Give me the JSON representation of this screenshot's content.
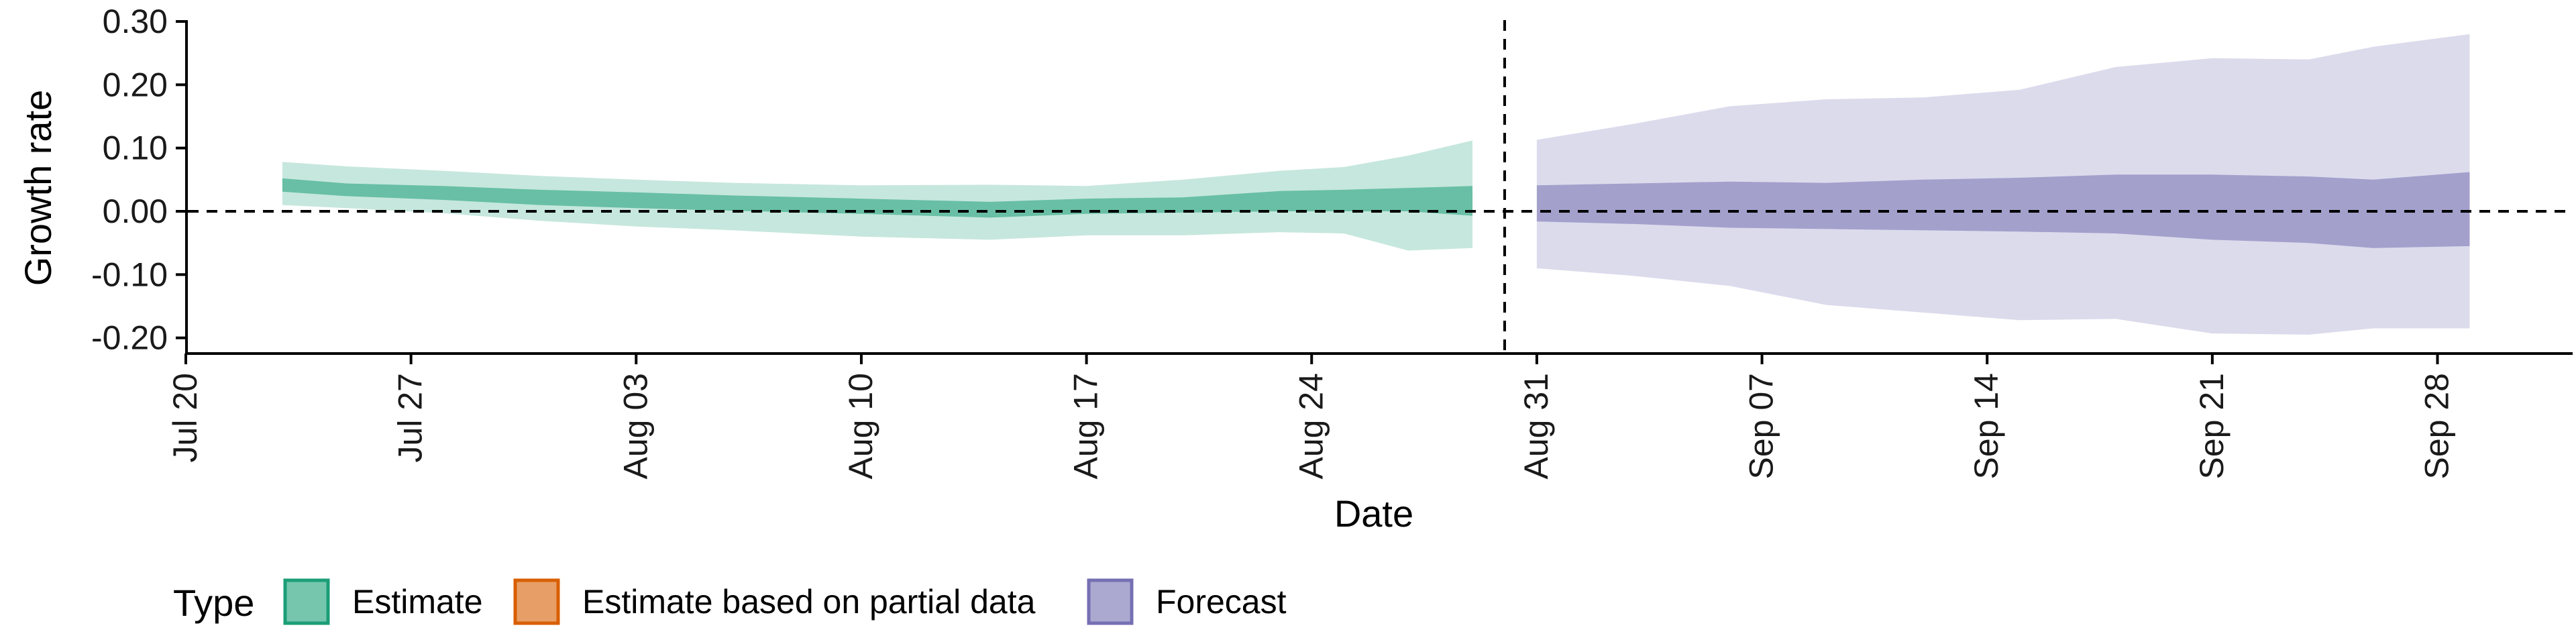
{
  "chart_data": {
    "type": "area",
    "xlabel": "Date",
    "ylabel": "Growth rate",
    "x_ticks": [
      "Jul 20",
      "Jul 27",
      "Aug 03",
      "Aug 10",
      "Aug 17",
      "Aug 24",
      "Aug 31",
      "Sep 07",
      "Sep 14",
      "Sep 21",
      "Sep 28"
    ],
    "y_ticks": [
      "-0.20",
      "-0.10",
      "0.00",
      "0.10",
      "0.20",
      "0.30"
    ],
    "ylim": [
      -0.23,
      0.3
    ],
    "xlim": [
      "2020-07-19",
      "2020-10-02"
    ],
    "reference_hline": 0.0,
    "forecast_start": "2020-08-30",
    "legend": {
      "title": "Type",
      "position": "bottom",
      "entries": [
        {
          "label": "Estimate",
          "color": "#1b9e77"
        },
        {
          "label": "Estimate based on partial data",
          "color": "#d95f02"
        },
        {
          "label": "Forecast",
          "color": "#7570b3"
        }
      ]
    },
    "series": [
      {
        "name": "Estimate",
        "color": "#1b9e77",
        "points": [
          {
            "date": "2020-07-23",
            "lo90": 0.01,
            "lo50": 0.031,
            "hi50": 0.052,
            "hi90": 0.078
          },
          {
            "date": "2020-07-25",
            "lo90": 0.005,
            "lo50": 0.024,
            "hi50": 0.044,
            "hi90": 0.071
          },
          {
            "date": "2020-07-28",
            "lo90": -0.003,
            "lo50": 0.018,
            "hi50": 0.04,
            "hi90": 0.064
          },
          {
            "date": "2020-07-31",
            "lo90": -0.015,
            "lo50": 0.01,
            "hi50": 0.034,
            "hi90": 0.056
          },
          {
            "date": "2020-08-03",
            "lo90": -0.024,
            "lo50": 0.005,
            "hi50": 0.03,
            "hi90": 0.05
          },
          {
            "date": "2020-08-06",
            "lo90": -0.03,
            "lo50": 0.001,
            "hi50": 0.025,
            "hi90": 0.045
          },
          {
            "date": "2020-08-10",
            "lo90": -0.04,
            "lo50": -0.004,
            "hi50": 0.02,
            "hi90": 0.041
          },
          {
            "date": "2020-08-14",
            "lo90": -0.045,
            "lo50": -0.01,
            "hi50": 0.015,
            "hi90": 0.042
          },
          {
            "date": "2020-08-17",
            "lo90": -0.038,
            "lo50": -0.004,
            "hi50": 0.02,
            "hi90": 0.04
          },
          {
            "date": "2020-08-20",
            "lo90": -0.038,
            "lo50": -0.002,
            "hi50": 0.022,
            "hi90": 0.05
          },
          {
            "date": "2020-08-23",
            "lo90": -0.033,
            "lo50": 0.0,
            "hi50": 0.032,
            "hi90": 0.064
          },
          {
            "date": "2020-08-25",
            "lo90": -0.035,
            "lo50": 0.0,
            "hi50": 0.034,
            "hi90": 0.07
          },
          {
            "date": "2020-08-27",
            "lo90": -0.062,
            "lo50": 0.0,
            "hi50": 0.037,
            "hi90": 0.088
          },
          {
            "date": "2020-08-29",
            "lo90": -0.058,
            "lo50": -0.007,
            "hi50": 0.04,
            "hi90": 0.112
          }
        ]
      },
      {
        "name": "Forecast",
        "color": "#7570b3",
        "points": [
          {
            "date": "2020-08-31",
            "lo90": -0.09,
            "lo50": -0.016,
            "hi50": 0.041,
            "hi90": 0.113
          },
          {
            "date": "2020-09-03",
            "lo90": -0.102,
            "lo50": -0.02,
            "hi50": 0.044,
            "hi90": 0.138
          },
          {
            "date": "2020-09-06",
            "lo90": -0.118,
            "lo50": -0.026,
            "hi50": 0.047,
            "hi90": 0.166
          },
          {
            "date": "2020-09-09",
            "lo90": -0.148,
            "lo50": -0.028,
            "hi50": 0.045,
            "hi90": 0.177
          },
          {
            "date": "2020-09-12",
            "lo90": -0.16,
            "lo50": -0.03,
            "hi50": 0.05,
            "hi90": 0.18
          },
          {
            "date": "2020-09-15",
            "lo90": -0.172,
            "lo50": -0.032,
            "hi50": 0.053,
            "hi90": 0.192
          },
          {
            "date": "2020-09-18",
            "lo90": -0.17,
            "lo50": -0.035,
            "hi50": 0.058,
            "hi90": 0.228
          },
          {
            "date": "2020-09-21",
            "lo90": -0.193,
            "lo50": -0.045,
            "hi50": 0.058,
            "hi90": 0.242
          },
          {
            "date": "2020-09-24",
            "lo90": -0.195,
            "lo50": -0.05,
            "hi50": 0.055,
            "hi90": 0.24
          },
          {
            "date": "2020-09-26",
            "lo90": -0.185,
            "lo50": -0.058,
            "hi50": 0.05,
            "hi90": 0.26
          },
          {
            "date": "2020-09-29",
            "lo90": -0.185,
            "lo50": -0.055,
            "hi50": 0.062,
            "hi90": 0.28
          }
        ]
      }
    ]
  }
}
